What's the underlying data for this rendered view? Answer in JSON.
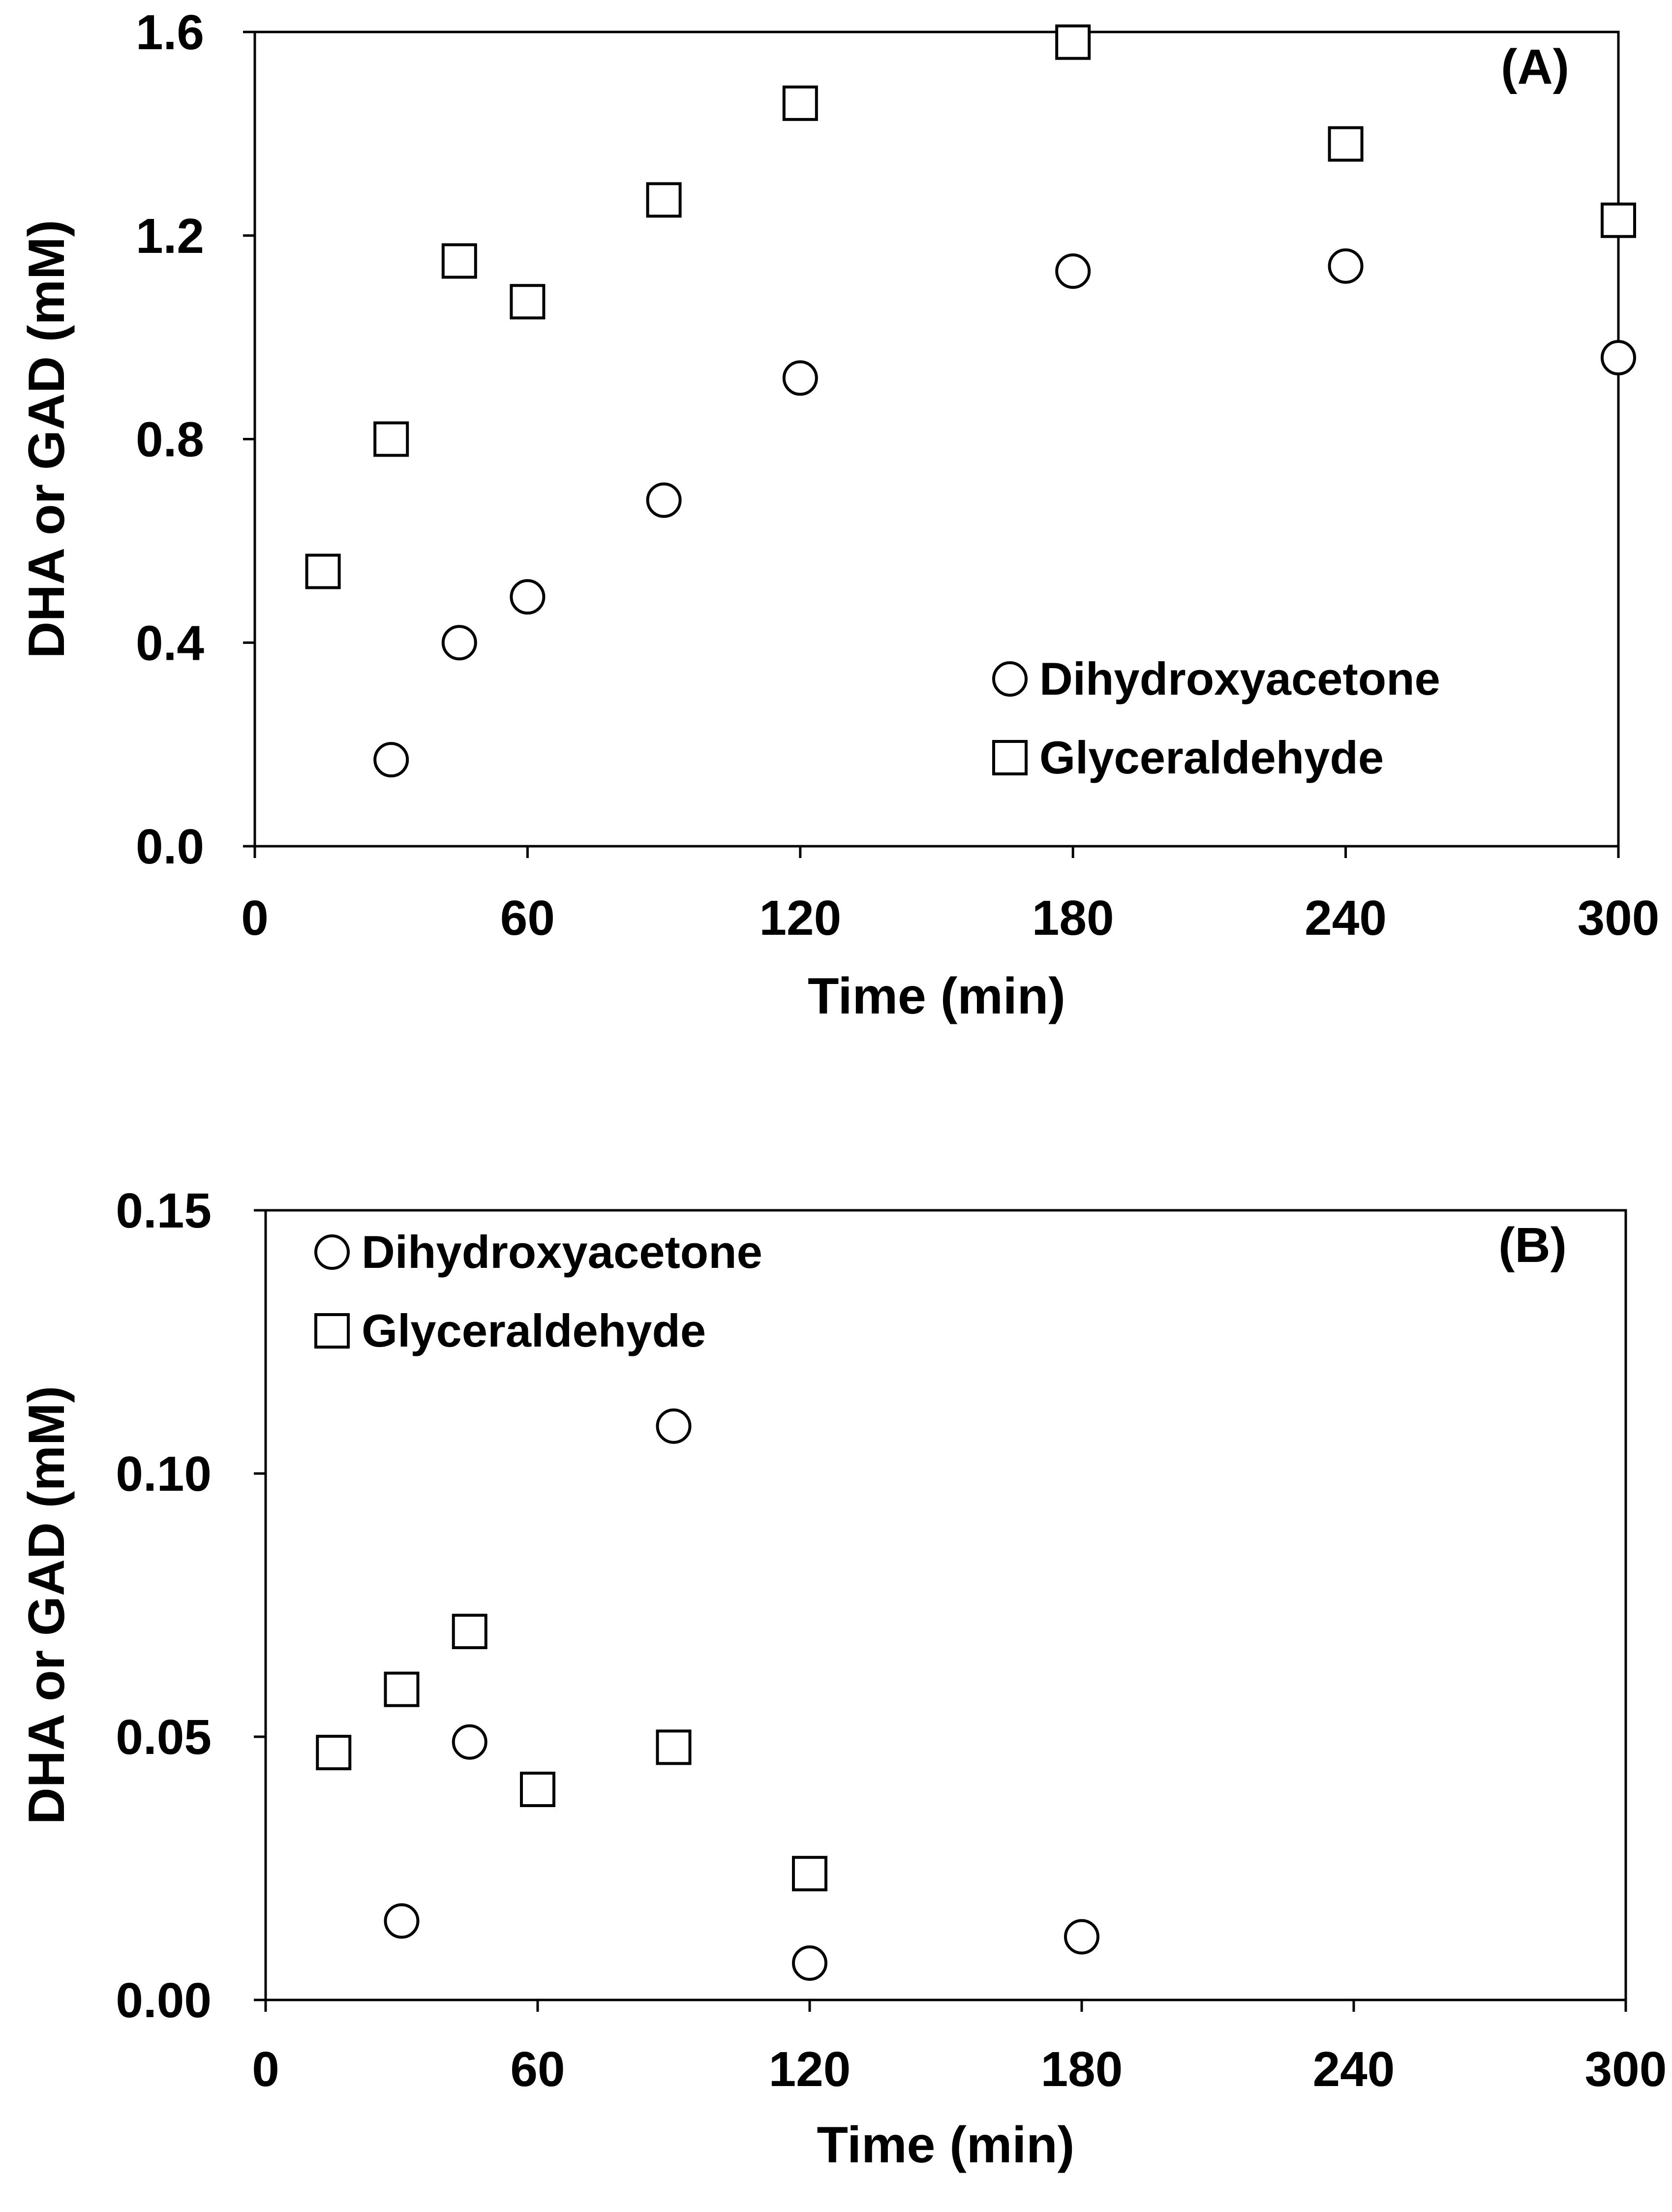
{
  "chart_data": [
    {
      "type": "scatter",
      "panel_label": "(A)",
      "xlabel": "Time (min)",
      "ylabel": "DHA or GAD (mM)",
      "xlim": [
        0,
        300
      ],
      "ylim": [
        0,
        1.6
      ],
      "x_ticks": [
        0,
        60,
        120,
        180,
        240,
        300
      ],
      "x_tick_labels": [
        "0",
        "60",
        "120",
        "180",
        "240",
        "300"
      ],
      "y_ticks": [
        0,
        0.4,
        0.8,
        1.2,
        1.6
      ],
      "y_tick_labels": [
        "0.0",
        "0.4",
        "0.8",
        "1.2",
        "1.6"
      ],
      "legend_position": "bottom-right",
      "grid": false,
      "series": [
        {
          "name": "Dihydroxyacetone",
          "marker": "circle",
          "points": [
            {
              "x": 30,
              "y": 0.17
            },
            {
              "x": 45,
              "y": 0.4
            },
            {
              "x": 60,
              "y": 0.49
            },
            {
              "x": 90,
              "y": 0.68
            },
            {
              "x": 120,
              "y": 0.92
            },
            {
              "x": 180,
              "y": 1.13
            },
            {
              "x": 240,
              "y": 1.14
            },
            {
              "x": 300,
              "y": 0.96
            }
          ]
        },
        {
          "name": "Glyceraldehyde",
          "marker": "square",
          "points": [
            {
              "x": 15,
              "y": 0.54
            },
            {
              "x": 30,
              "y": 0.8
            },
            {
              "x": 45,
              "y": 1.15
            },
            {
              "x": 60,
              "y": 1.07
            },
            {
              "x": 90,
              "y": 1.27
            },
            {
              "x": 120,
              "y": 1.46
            },
            {
              "x": 180,
              "y": 1.58
            },
            {
              "x": 240,
              "y": 1.38
            },
            {
              "x": 300,
              "y": 1.23
            }
          ]
        }
      ]
    },
    {
      "type": "scatter",
      "panel_label": "(B)",
      "xlabel": "Time (min)",
      "ylabel": "DHA or GAD (mM)",
      "xlim": [
        0,
        300
      ],
      "ylim": [
        0,
        0.15
      ],
      "x_ticks": [
        0,
        60,
        120,
        180,
        240,
        300
      ],
      "x_tick_labels": [
        "0",
        "60",
        "120",
        "180",
        "240",
        "300"
      ],
      "y_ticks": [
        0,
        0.05,
        0.1,
        0.15
      ],
      "y_tick_labels": [
        "0.00",
        "0.05",
        "0.10",
        "0.15"
      ],
      "legend_position": "top-left",
      "grid": false,
      "series": [
        {
          "name": "Dihydroxyacetone",
          "marker": "circle",
          "points": [
            {
              "x": 30,
              "y": 0.015
            },
            {
              "x": 45,
              "y": 0.049
            },
            {
              "x": 90,
              "y": 0.109
            },
            {
              "x": 120,
              "y": 0.007
            },
            {
              "x": 180,
              "y": 0.012
            }
          ]
        },
        {
          "name": "Glyceraldehyde",
          "marker": "square",
          "points": [
            {
              "x": 15,
              "y": 0.047
            },
            {
              "x": 30,
              "y": 0.059
            },
            {
              "x": 45,
              "y": 0.07
            },
            {
              "x": 60,
              "y": 0.04
            },
            {
              "x": 90,
              "y": 0.048
            },
            {
              "x": 120,
              "y": 0.024
            }
          ]
        }
      ]
    }
  ]
}
